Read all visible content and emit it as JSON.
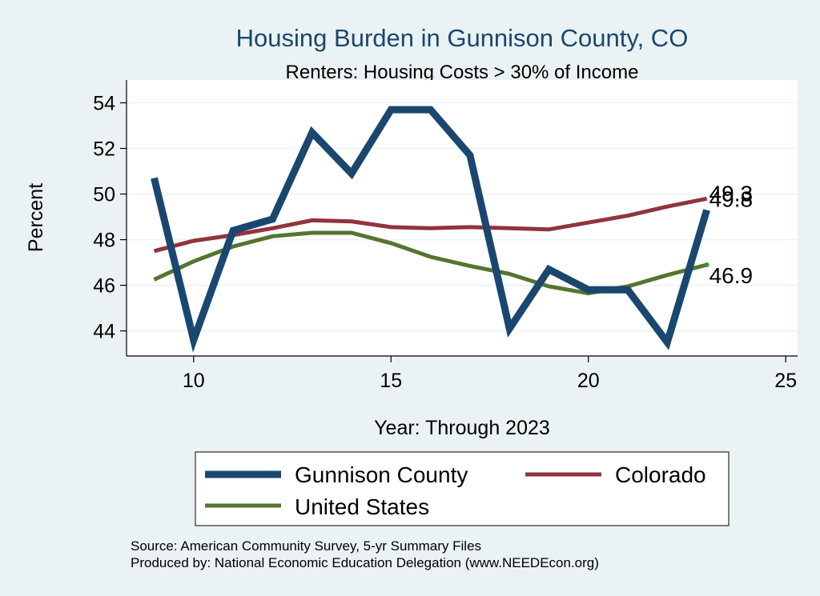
{
  "chart_data": {
    "type": "line",
    "title": "Housing Burden in Gunnison County, CO",
    "subtitle": "Renters: Housing Costs > 30% of Income",
    "xlabel": "Year: Through 2023",
    "ylabel": "Percent",
    "xlim": [
      8.3,
      25.3
    ],
    "ylim": [
      42.9,
      55.0
    ],
    "x_ticks": [
      10,
      15,
      20,
      25
    ],
    "y_ticks": [
      44,
      46,
      48,
      50,
      52,
      54
    ],
    "grid": true,
    "x": [
      9,
      10,
      11,
      12,
      13,
      14,
      15,
      16,
      17,
      18,
      19,
      20,
      21,
      22,
      23
    ],
    "series": [
      {
        "name": "Gunnison County",
        "color": "#1a476f",
        "values": [
          50.7,
          43.6,
          48.4,
          48.9,
          52.7,
          50.9,
          53.7,
          53.7,
          51.7,
          44.1,
          46.7,
          45.8,
          45.8,
          43.5,
          49.3
        ],
        "end_label": "49.3"
      },
      {
        "name": "Colorado",
        "color": "#90353b",
        "values": [
          47.5,
          47.95,
          48.2,
          48.5,
          48.85,
          48.8,
          48.55,
          48.5,
          48.55,
          48.5,
          48.45,
          48.75,
          49.05,
          49.45,
          49.8
        ],
        "end_label": "49.8"
      },
      {
        "name": "United States",
        "color": "#55752f",
        "values": [
          46.25,
          47.05,
          47.7,
          48.15,
          48.3,
          48.3,
          47.85,
          47.25,
          46.85,
          46.5,
          45.95,
          45.65,
          45.95,
          46.45,
          46.9
        ],
        "end_label": "46.9"
      }
    ],
    "legend_position": "bottom",
    "notes": [
      "Source: American Community Survey, 5-yr Summary Files",
      "Produced by: National Economic Education Delegation (www.NEEDEcon.org)"
    ]
  }
}
